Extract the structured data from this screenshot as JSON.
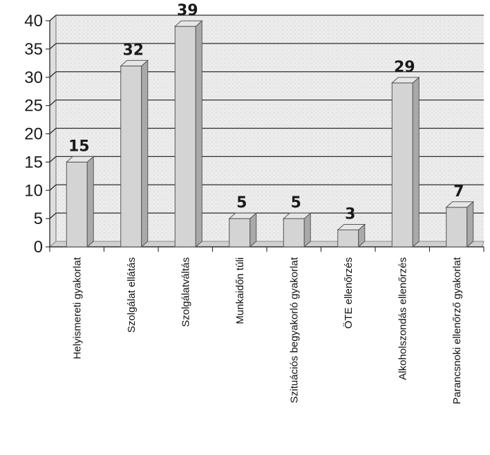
{
  "chart_data": {
    "type": "bar",
    "categories": [
      "Helyismereti gyakorlat",
      "Szolgálat ellátás",
      "Szolgálatváltás",
      "Munkaidőn túli",
      "Szituációs begyakorló gyakorlat",
      "ÖTE ellenőrzés",
      "Alkoholszondás ellenőrzés",
      "Parancsnoki ellenőrző gyakorlat"
    ],
    "values": [
      15,
      32,
      39,
      5,
      5,
      3,
      29,
      7
    ],
    "data_labels": [
      "15",
      "32",
      "39",
      "5",
      "5",
      "3",
      "29",
      "7"
    ],
    "ylim": [
      0,
      40
    ],
    "yticks": [
      0,
      5,
      10,
      15,
      20,
      25,
      30,
      35,
      40
    ],
    "ytick_labels": [
      "0",
      "5",
      "10",
      "15",
      "20",
      "25",
      "30",
      "35",
      "40"
    ],
    "grid": true,
    "style": "3d-column",
    "colors": {
      "bar_front": "#d4d4d4",
      "bar_side": "#a9a9a9",
      "bar_top": "#e6e6e6",
      "wall": "#e9e9e9",
      "gridline": "#2b2b2b",
      "text": "#1a1a1a"
    }
  }
}
